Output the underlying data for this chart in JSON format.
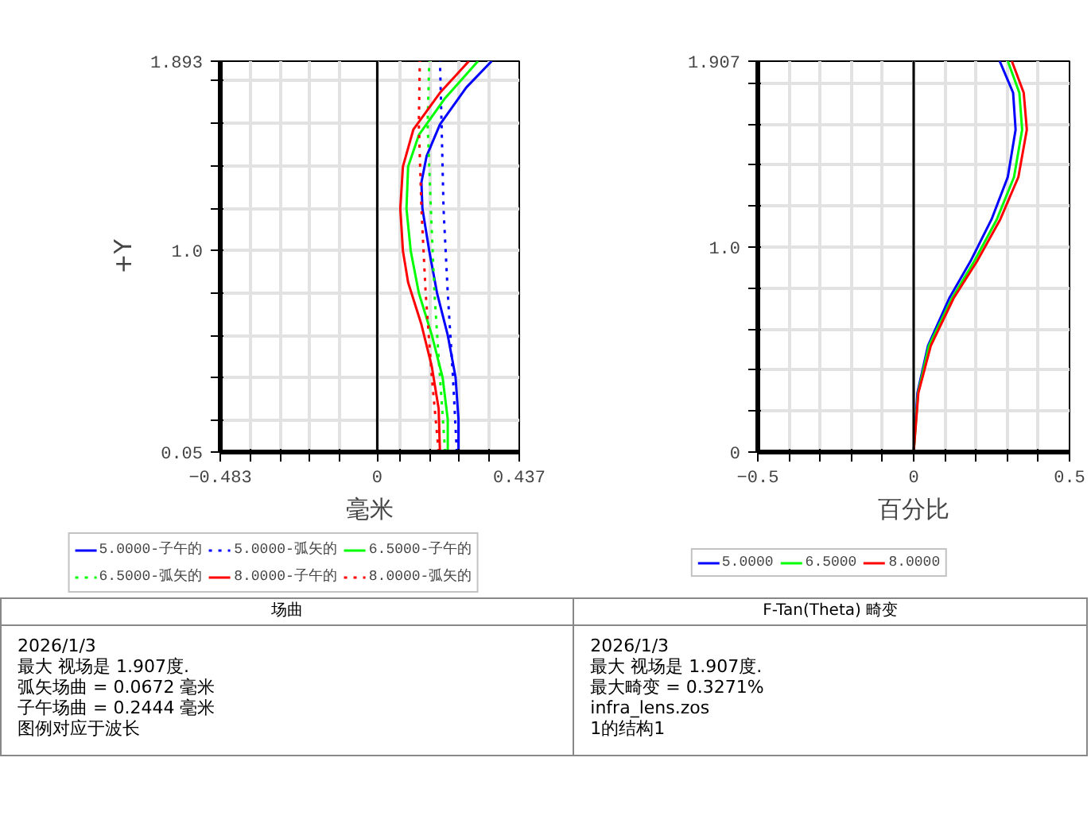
{
  "chart_data": [
    {
      "type": "line",
      "title": "场曲",
      "xlabel": "毫米",
      "ylabel": "+Y",
      "xlim": [
        -0.483,
        0.437
      ],
      "ylim": [
        0.05,
        1.893
      ],
      "xticks": [
        -0.483,
        {
          "value": -0.391,
          "label": null
        },
        {
          "value": -0.299,
          "label": null
        },
        {
          "value": -0.207,
          "label": null
        },
        {
          "value": -0.115,
          "label": null
        },
        0,
        {
          "value": 0.069,
          "label": null
        },
        {
          "value": 0.161,
          "label": null
        },
        {
          "value": 0.253,
          "label": null
        },
        {
          "value": 0.345,
          "label": null
        },
        0.437
      ],
      "yticks": [
        0.05,
        {
          "value": 0.2,
          "label": null
        },
        {
          "value": 0.4,
          "label": null
        },
        {
          "value": 0.6,
          "label": null
        },
        {
          "value": 0.8,
          "label": null
        },
        {
          "value": 1.0,
          "label": "1.0"
        },
        {
          "value": 1.2,
          "label": null
        },
        {
          "value": 1.4,
          "label": null
        },
        {
          "value": 1.6,
          "label": null
        },
        {
          "value": 1.8,
          "label": null
        },
        1.893
      ],
      "grid": true,
      "legend": "bottom",
      "ref_lines": [
        {
          "axis": "x",
          "value": 0,
          "color": "#000000"
        }
      ],
      "series": [
        {
          "name": "5.0000-子午的",
          "color": "#0000ff",
          "line_style": "solid",
          "x": [
            0.25,
            0.25,
            0.241,
            0.217,
            0.184,
            0.16,
            0.139,
            0.136,
            0.152,
            0.193,
            0.274,
            0.352
          ],
          "values": [
            0.05,
            0.204,
            0.403,
            0.601,
            0.8,
            0.999,
            1.198,
            1.322,
            1.446,
            1.595,
            1.769,
            1.893
          ]
        },
        {
          "name": "5.0000-弧矢的",
          "color": "#0000ff",
          "line_style": "dotted",
          "x": [
            0.245,
            0.233,
            0.217,
            0.204,
            0.198,
            0.193
          ],
          "values": [
            0.05,
            0.403,
            0.8,
            1.198,
            1.595,
            1.893
          ]
        },
        {
          "name": "6.5000-子午的",
          "color": "#00ff00",
          "line_style": "solid",
          "x": [
            0.217,
            0.217,
            0.201,
            0.168,
            0.128,
            0.103,
            0.09,
            0.095,
            0.128,
            0.209,
            0.31
          ],
          "values": [
            0.05,
            0.204,
            0.403,
            0.601,
            0.8,
            0.999,
            1.198,
            1.396,
            1.545,
            1.719,
            1.893
          ]
        },
        {
          "name": "6.5000-弧矢的",
          "color": "#00ff00",
          "line_style": "dotted",
          "x": [
            0.209,
            0.193,
            0.176,
            0.165,
            0.155,
            0.16
          ],
          "values": [
            0.05,
            0.403,
            0.8,
            1.198,
            1.595,
            1.893
          ]
        },
        {
          "name": "8.0000-子午的",
          "color": "#ff0000",
          "line_style": "solid",
          "x": [
            0.193,
            0.189,
            0.168,
            0.136,
            0.095,
            0.079,
            0.071,
            0.079,
            0.111,
            0.193,
            0.282
          ],
          "values": [
            0.05,
            0.254,
            0.453,
            0.651,
            0.85,
            0.999,
            1.198,
            1.396,
            1.57,
            1.744,
            1.893
          ]
        },
        {
          "name": "8.0000-弧矢的",
          "color": "#ff0000",
          "line_style": "dotted",
          "x": [
            0.189,
            0.168,
            0.149,
            0.136,
            0.128,
            0.131
          ],
          "values": [
            0.05,
            0.403,
            0.8,
            1.198,
            1.595,
            1.893
          ]
        }
      ],
      "annotations": [
        "2026/1/3",
        "最大 视场是 1.907度.",
        "弧矢场曲 = 0.0672 毫米",
        "子午场曲 = 0.2444 毫米",
        "图例对应于波长"
      ]
    },
    {
      "type": "line",
      "title": "F-Tan(Theta) 畸变",
      "xlabel": "百分比",
      "xlim": [
        -0.5,
        0.5
      ],
      "ylim": [
        0,
        1.907
      ],
      "xticks": [
        -0.5,
        {
          "value": -0.4,
          "label": null
        },
        {
          "value": -0.3,
          "label": null
        },
        {
          "value": -0.2,
          "label": null
        },
        {
          "value": -0.1,
          "label": null
        },
        0,
        {
          "value": 0.1,
          "label": null
        },
        {
          "value": 0.2,
          "label": null
        },
        {
          "value": 0.3,
          "label": null
        },
        {
          "value": 0.4,
          "label": null
        },
        0.5
      ],
      "yticks": [
        0,
        {
          "value": 0.2,
          "label": null
        },
        {
          "value": 0.4,
          "label": null
        },
        {
          "value": 0.6,
          "label": null
        },
        {
          "value": 0.8,
          "label": null
        },
        {
          "value": 1.0,
          "label": "1.0"
        },
        {
          "value": 1.2,
          "label": null
        },
        {
          "value": 1.4,
          "label": null
        },
        {
          "value": 1.6,
          "label": null
        },
        {
          "value": 1.8,
          "label": null
        },
        1.907
      ],
      "grid": true,
      "legend": "bottom",
      "ref_lines": [
        {
          "axis": "x",
          "value": 0,
          "color": "#000000"
        }
      ],
      "series": [
        {
          "name": "5.0000",
          "color": "#0000ff",
          "x": [
            0,
            0.012,
            0.046,
            0.114,
            0.182,
            0.25,
            0.302,
            0.327,
            0.319,
            0.276
          ],
          "values": [
            0,
            0.288,
            0.519,
            0.75,
            0.93,
            1.136,
            1.342,
            1.573,
            1.753,
            1.907
          ]
        },
        {
          "name": "6.5000",
          "color": "#00ff00",
          "x": [
            0,
            0.014,
            0.049,
            0.123,
            0.194,
            0.267,
            0.322,
            0.348,
            0.339,
            0.302
          ],
          "values": [
            0,
            0.288,
            0.519,
            0.75,
            0.93,
            1.136,
            1.342,
            1.573,
            1.753,
            1.907
          ]
        },
        {
          "name": "8.0000",
          "color": "#ff0000",
          "x": [
            0,
            0.015,
            0.055,
            0.128,
            0.203,
            0.278,
            0.336,
            0.363,
            0.353,
            0.315
          ],
          "values": [
            0,
            0.288,
            0.519,
            0.75,
            0.93,
            1.136,
            1.342,
            1.573,
            1.753,
            1.907
          ]
        }
      ],
      "annotations": [
        "2026/1/3",
        "最大 视场是 1.907度.",
        "最大畸变 = 0.3271%",
        "infra_lens.zos",
        "1的结构1"
      ]
    }
  ]
}
